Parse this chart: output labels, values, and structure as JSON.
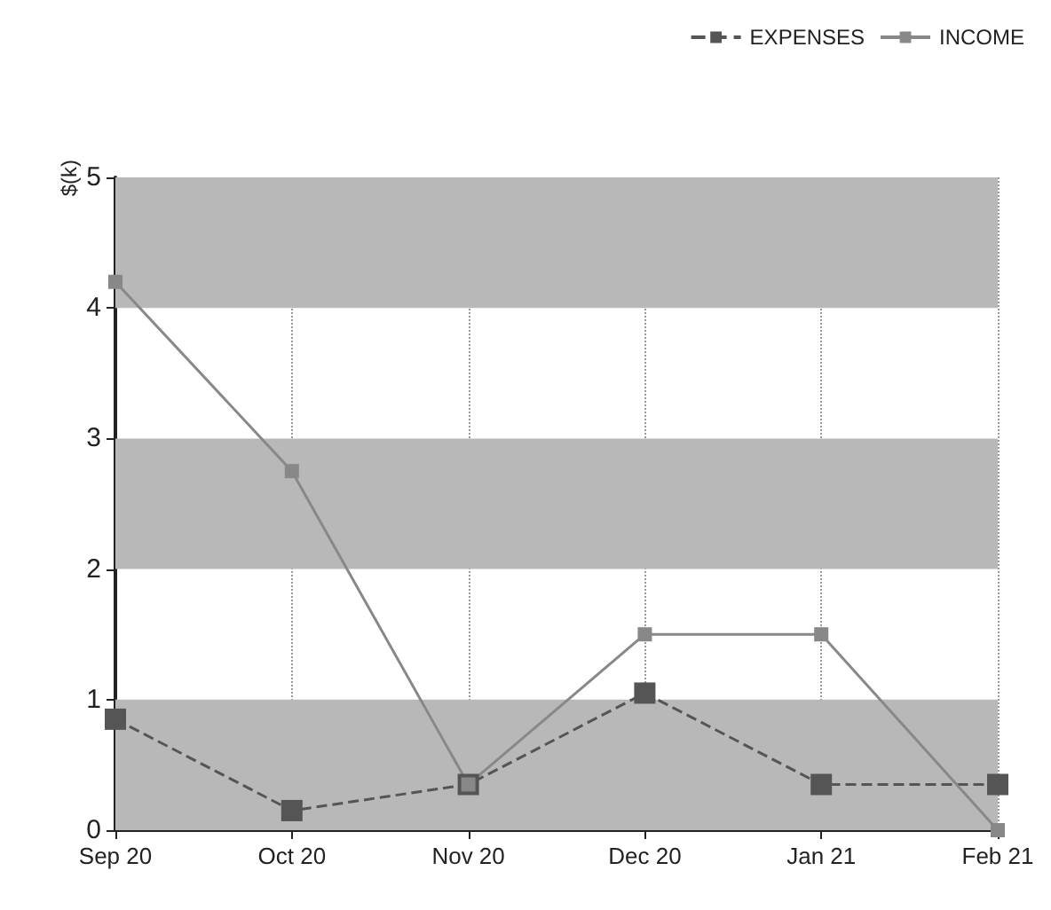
{
  "chart_data": {
    "type": "line",
    "ylabel": "$(k)",
    "categories": [
      "Sep 20",
      "Oct 20",
      "Nov 20",
      "Dec 20",
      "Jan 21",
      "Feb 21"
    ],
    "series": [
      {
        "name": "EXPENSES",
        "color": "#555555",
        "values": [
          0.85,
          0.15,
          0.35,
          1.05,
          0.35,
          0.35
        ],
        "line_style": "dashed"
      },
      {
        "name": "INCOME",
        "color": "#888888",
        "values": [
          4.2,
          2.75,
          0.35,
          1.5,
          1.5,
          0
        ],
        "line_style": "solid"
      }
    ],
    "ylim": [
      0,
      5
    ],
    "yticks": [
      0,
      1,
      2,
      3,
      4,
      5
    ],
    "grid": "x",
    "legend": "top right",
    "marker": "square",
    "bands": [
      {
        "axis": "y",
        "from": 0,
        "to": 1,
        "color": "#b8b8b8"
      },
      {
        "axis": "y",
        "from": 2,
        "to": 3,
        "color": "#b8b8b8"
      },
      {
        "axis": "y",
        "from": 4,
        "to": 5,
        "color": "#b8b8b8"
      }
    ]
  }
}
